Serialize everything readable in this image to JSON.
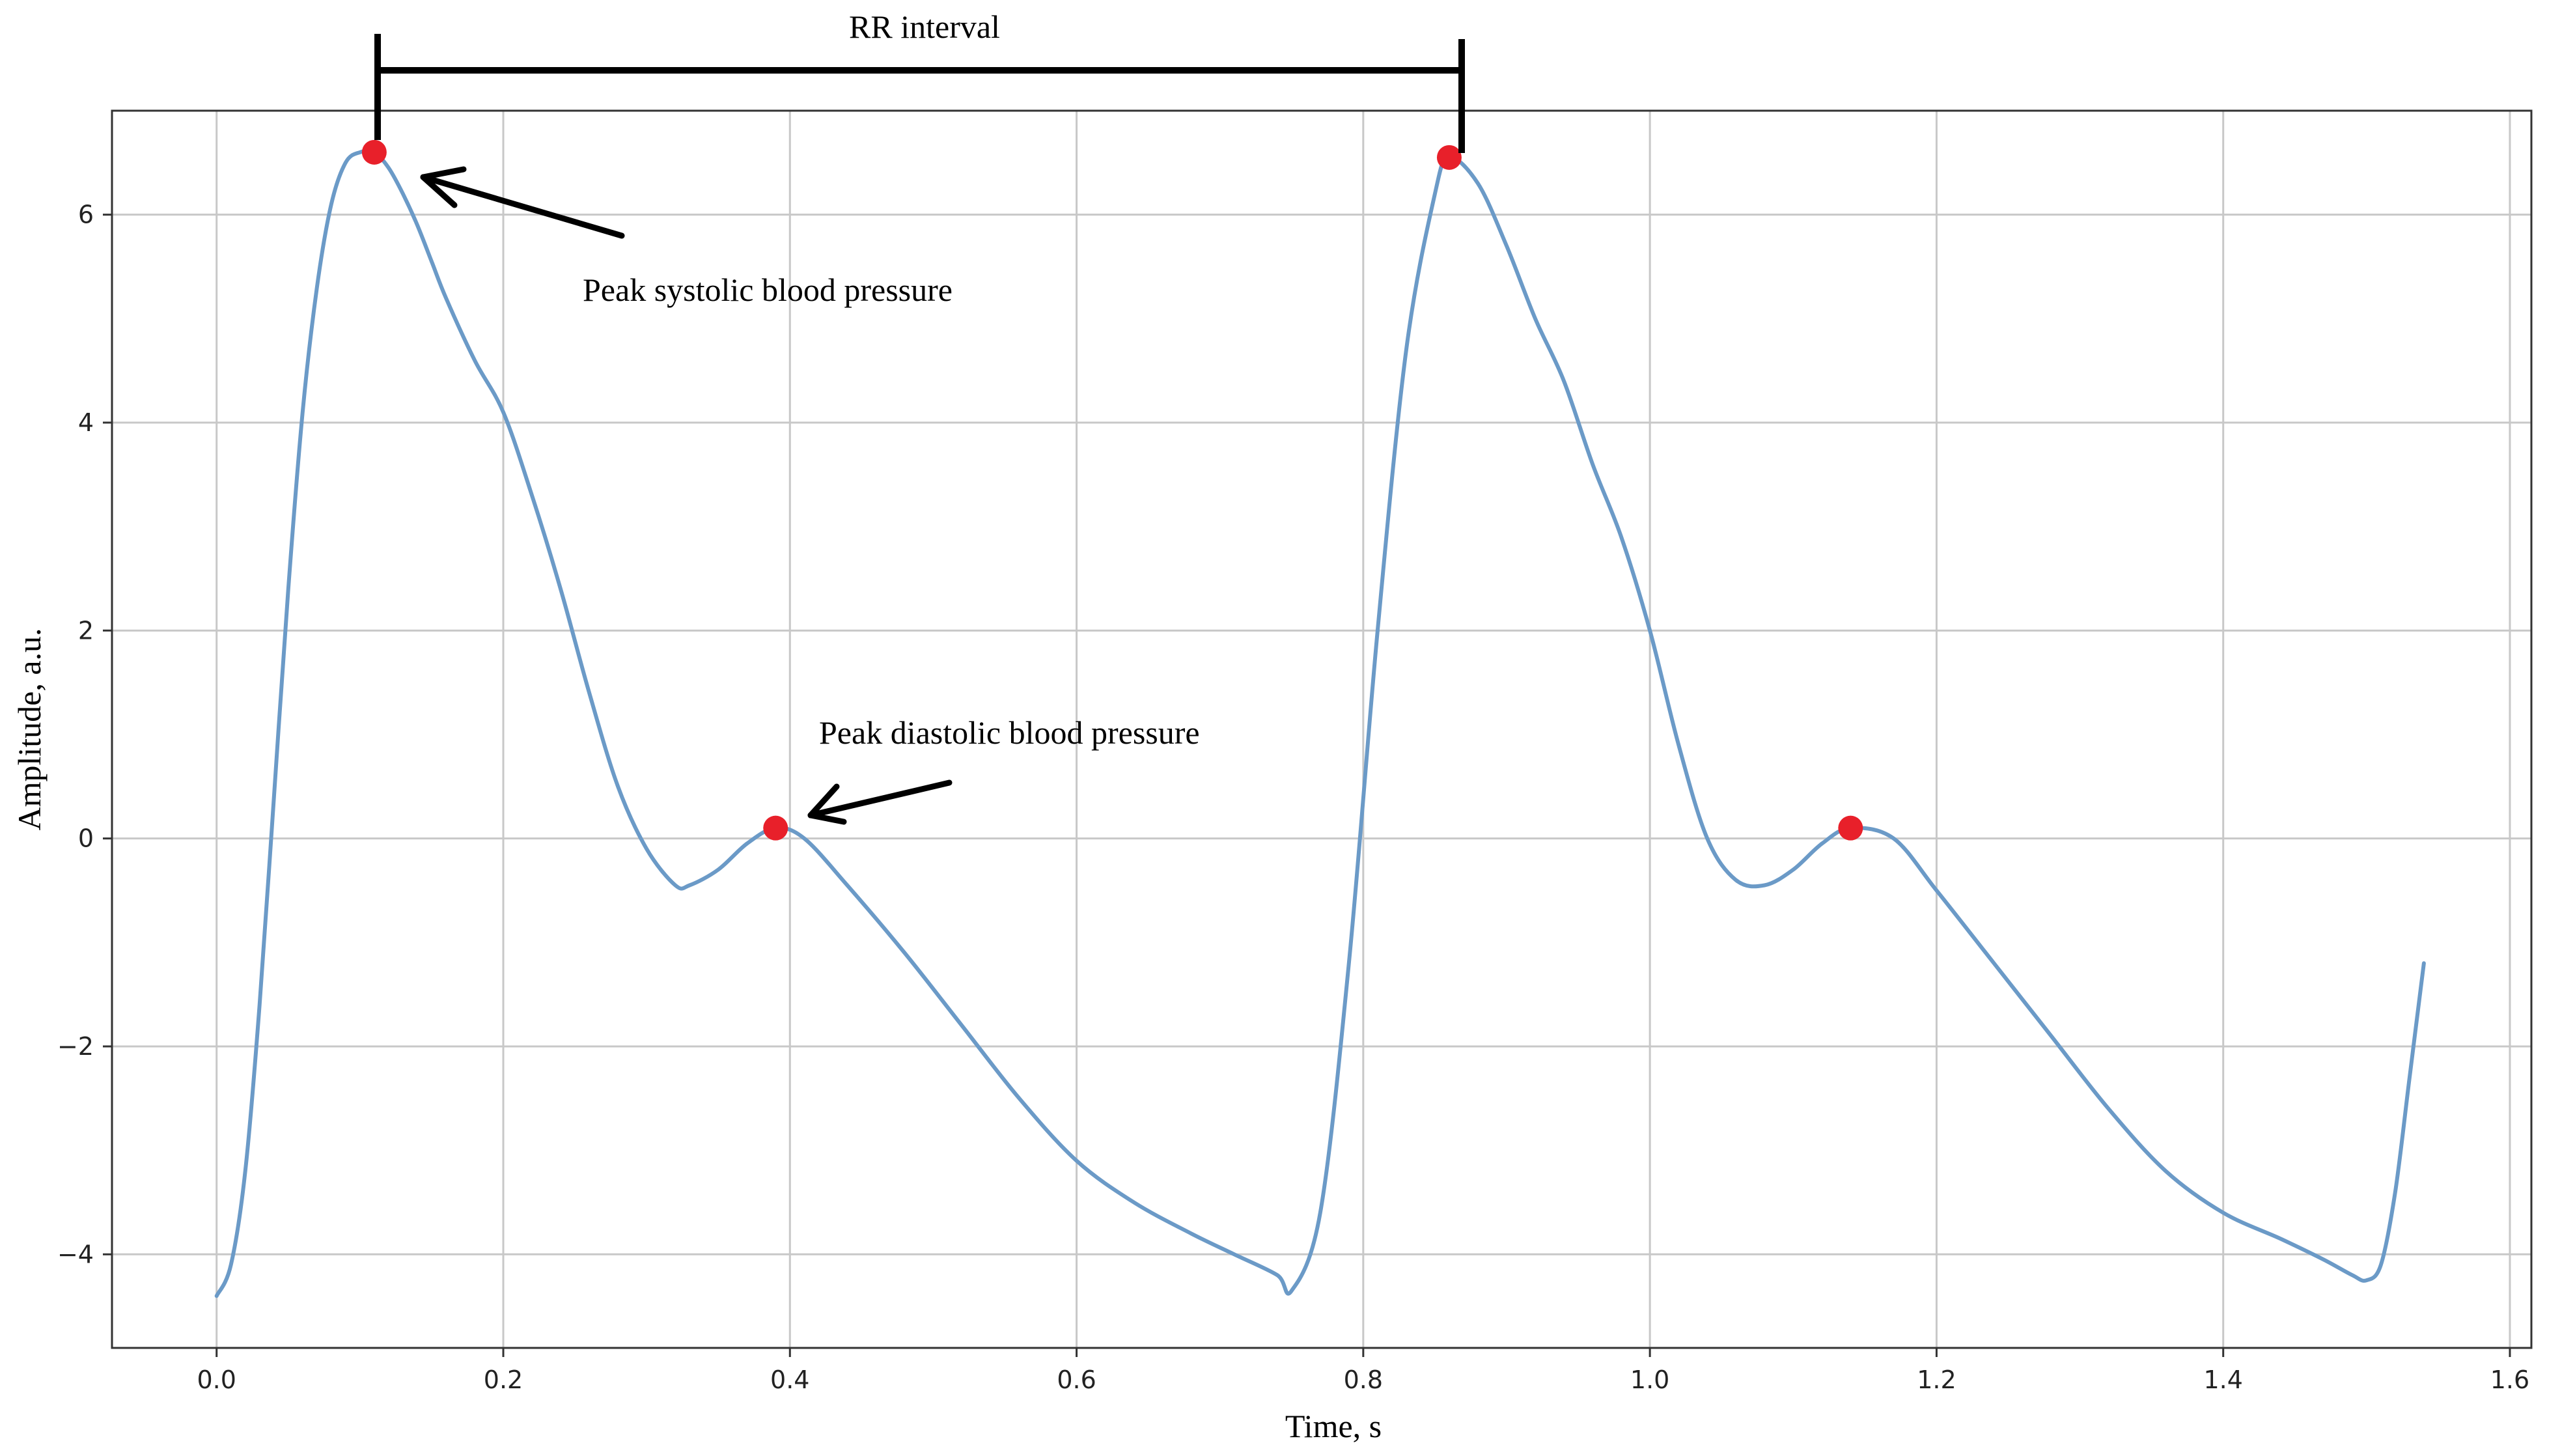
{
  "chart_data": {
    "type": "line",
    "xlabel": "Time, s",
    "ylabel": "Amplitude, a.u.",
    "xlim": [
      -0.073,
      1.615
    ],
    "ylim": [
      -4.9,
      7.0
    ],
    "xticks": [
      0.0,
      0.2,
      0.4,
      0.6,
      0.8,
      1.0,
      1.2,
      1.4,
      1.6
    ],
    "xtick_labels": [
      "0.0",
      "0.2",
      "0.4",
      "0.6",
      "0.8",
      "1.0",
      "1.2",
      "1.4",
      "1.6"
    ],
    "yticks": [
      -4,
      -2,
      0,
      2,
      4,
      6
    ],
    "ytick_labels": [
      "−4",
      "−2",
      "0",
      "2",
      "4",
      "6"
    ],
    "grid": true,
    "series": [
      {
        "color": "#6b9ac7",
        "x": [
          0.0,
          0.01,
          0.02,
          0.03,
          0.04,
          0.05,
          0.06,
          0.07,
          0.08,
          0.09,
          0.1,
          0.11,
          0.12,
          0.13,
          0.14,
          0.15,
          0.16,
          0.18,
          0.2,
          0.22,
          0.24,
          0.26,
          0.28,
          0.3,
          0.32,
          0.33,
          0.35,
          0.37,
          0.39,
          0.41,
          0.44,
          0.48,
          0.52,
          0.56,
          0.6,
          0.64,
          0.68,
          0.71,
          0.74,
          0.75,
          0.77,
          0.79,
          0.81,
          0.83,
          0.85,
          0.86,
          0.88,
          0.9,
          0.92,
          0.94,
          0.96,
          0.98,
          1.0,
          1.02,
          1.04,
          1.06,
          1.08,
          1.1,
          1.12,
          1.14,
          1.17,
          1.2,
          1.24,
          1.28,
          1.32,
          1.36,
          1.4,
          1.44,
          1.47,
          1.49,
          1.5,
          1.51,
          1.52,
          1.53,
          1.54
        ],
        "y": [
          -4.4,
          -4.1,
          -3.2,
          -1.6,
          0.4,
          2.4,
          4.1,
          5.3,
          6.1,
          6.5,
          6.6,
          6.6,
          6.45,
          6.2,
          5.9,
          5.55,
          5.2,
          4.6,
          4.1,
          3.3,
          2.4,
          1.4,
          0.5,
          -0.1,
          -0.45,
          -0.45,
          -0.3,
          -0.05,
          0.1,
          0.0,
          -0.45,
          -1.1,
          -1.8,
          -2.5,
          -3.1,
          -3.5,
          -3.8,
          -4.0,
          -4.2,
          -4.35,
          -3.6,
          -1.2,
          2.0,
          4.7,
          6.2,
          6.55,
          6.3,
          5.7,
          5.0,
          4.4,
          3.6,
          2.9,
          2.0,
          0.9,
          0.0,
          -0.4,
          -0.45,
          -0.3,
          -0.05,
          0.1,
          0.0,
          -0.5,
          -1.2,
          -1.9,
          -2.6,
          -3.2,
          -3.6,
          -3.85,
          -4.05,
          -4.2,
          -4.25,
          -4.1,
          -3.4,
          -2.3,
          -1.2
        ]
      }
    ],
    "peaks": [
      {
        "x": 0.11,
        "y": 6.6,
        "color": "#e8202a"
      },
      {
        "x": 0.39,
        "y": 0.1,
        "color": "#e8202a"
      },
      {
        "x": 0.86,
        "y": 6.55,
        "color": "#e8202a"
      },
      {
        "x": 1.14,
        "y": 0.1,
        "color": "#e8202a"
      }
    ],
    "annotations": {
      "rr_interval": "RR interval",
      "systolic": "Peak systolic blood pressure",
      "diastolic": "Peak diastolic blood pressure"
    }
  }
}
